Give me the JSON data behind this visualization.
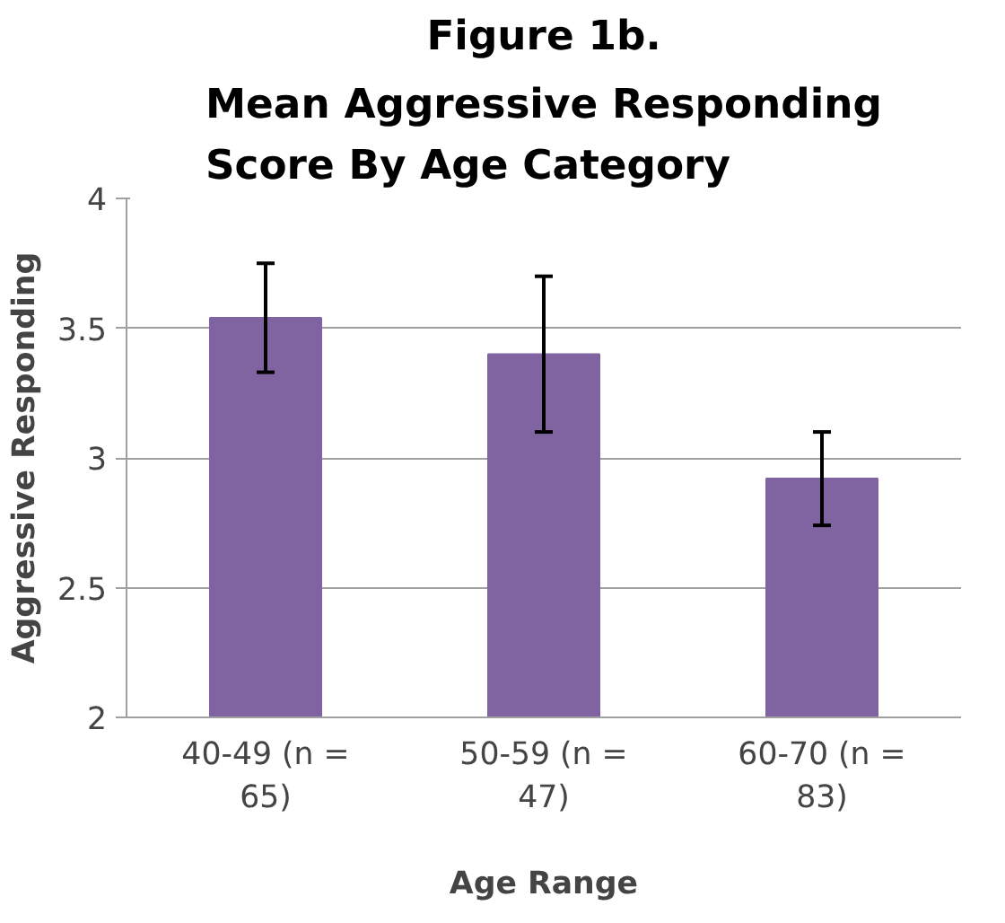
{
  "chart_data": {
    "type": "bar",
    "title": "Figure 1b.",
    "subtitle": "Mean Aggressive Responding Score By Age Category",
    "xlabel": "Age Range",
    "ylabel": "Aggressive Responding",
    "categories": [
      "40-49 (n = 65)",
      "50-59 (n = 47)",
      "60-70 (n = 83)"
    ],
    "values": [
      3.54,
      3.4,
      2.92
    ],
    "errors": [
      0.21,
      0.3,
      0.18
    ],
    "color": "#8064a2",
    "ylim": [
      2,
      4
    ],
    "yticks": [
      2,
      2.5,
      3,
      3.5,
      4
    ],
    "grid": "y"
  }
}
